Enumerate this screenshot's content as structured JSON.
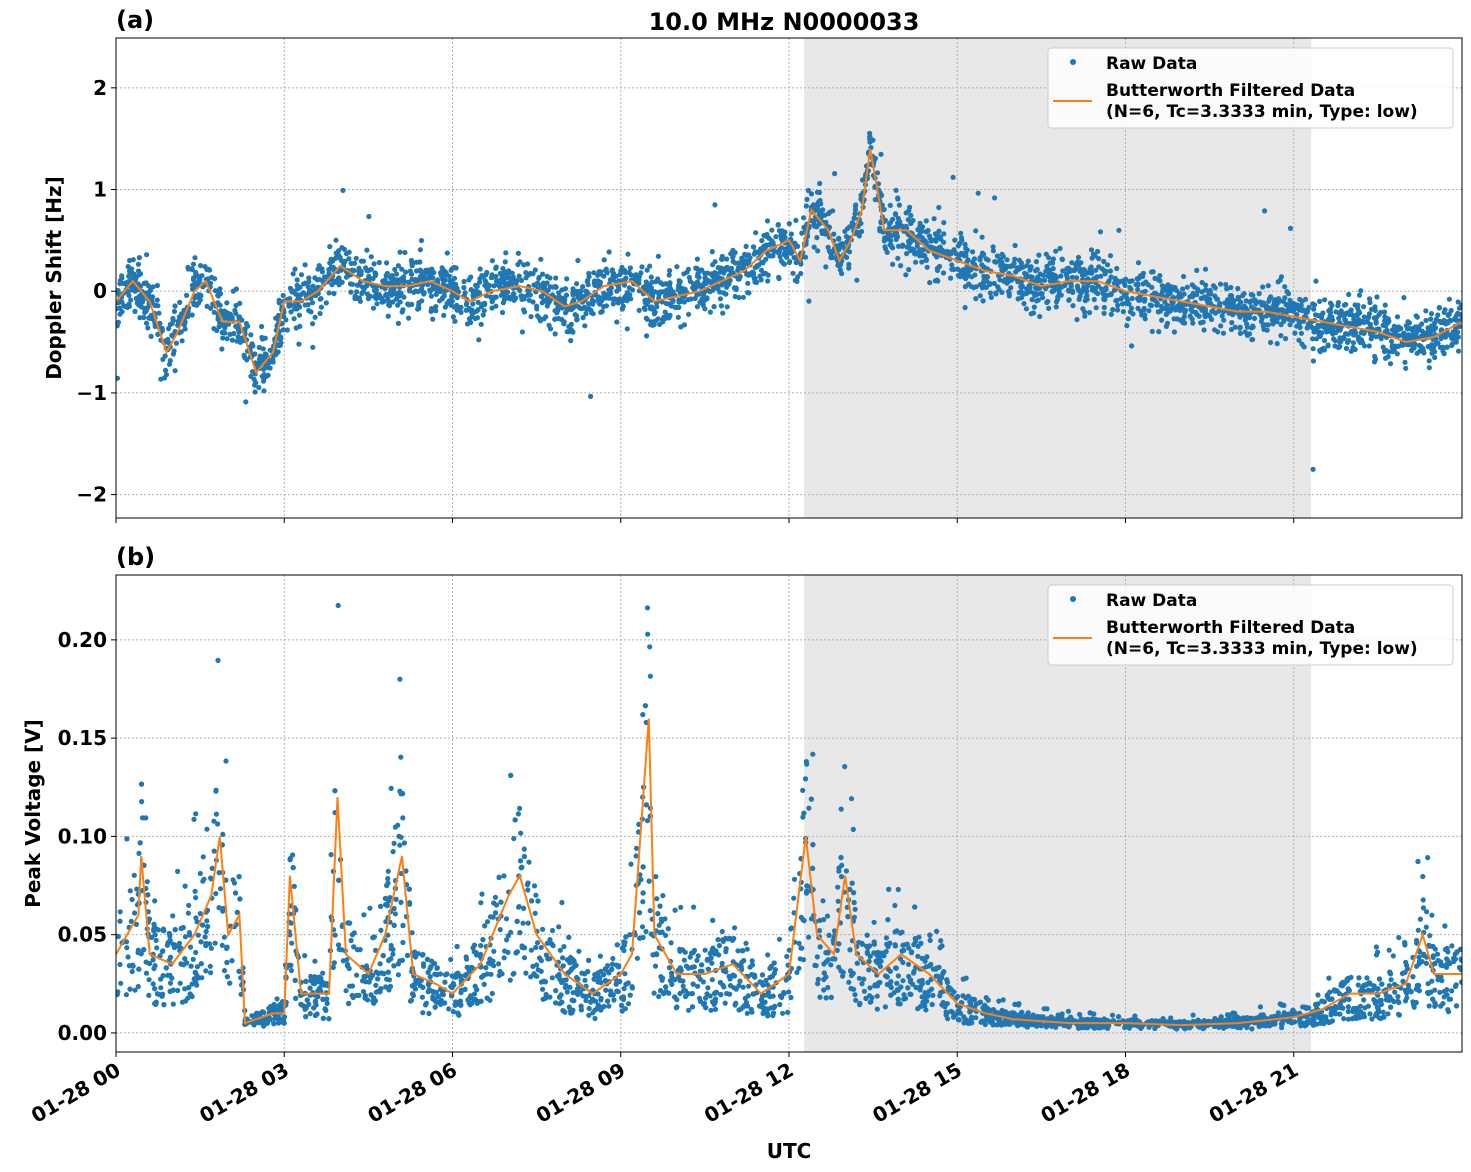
{
  "title": "10.0 MHz N0000033",
  "chart_data": [
    {
      "type": "scatter",
      "panel_label": "(a)",
      "ylabel": "Doppler Shift [Hz]",
      "xlabel": "",
      "xlim_hours": [
        0,
        24
      ],
      "ylim": [
        -2.23,
        2.49
      ],
      "yticks": [
        -2,
        -1,
        0,
        1,
        2
      ],
      "ytick_labels": [
        "−2",
        "−1",
        "0",
        "1",
        "2"
      ],
      "grid": true,
      "legend_position": "top-right",
      "shaded_interval_hours": [
        12.27,
        21.31
      ],
      "shade_color": "#e8e8e8",
      "series": [
        {
          "name": "Raw Data",
          "kind": "points",
          "color": "#1f77b4",
          "noise_sd": 0.13
        },
        {
          "name": "Butterworth Filtered Data",
          "name_line2": "(N=6, Tc=3.3333 min, Type: low)",
          "kind": "line",
          "color": "#ff7f0e",
          "points": [
            [
              0,
              -0.1
            ],
            [
              0.3,
              0.1
            ],
            [
              0.6,
              -0.1
            ],
            [
              0.9,
              -0.6
            ],
            [
              1.1,
              -0.4
            ],
            [
              1.4,
              0.0
            ],
            [
              1.6,
              0.1
            ],
            [
              1.9,
              -0.3
            ],
            [
              2.2,
              -0.3
            ],
            [
              2.5,
              -0.8
            ],
            [
              2.8,
              -0.6
            ],
            [
              3.0,
              -0.1
            ],
            [
              3.3,
              -0.1
            ],
            [
              3.6,
              0.0
            ],
            [
              4.0,
              0.25
            ],
            [
              4.4,
              0.1
            ],
            [
              4.8,
              0.05
            ],
            [
              5.2,
              0.05
            ],
            [
              5.6,
              0.1
            ],
            [
              6.0,
              0.0
            ],
            [
              6.3,
              -0.1
            ],
            [
              6.7,
              0.0
            ],
            [
              7.2,
              0.05
            ],
            [
              7.6,
              0.0
            ],
            [
              8.0,
              -0.15
            ],
            [
              8.3,
              -0.1
            ],
            [
              8.7,
              0.05
            ],
            [
              9.2,
              0.1
            ],
            [
              9.6,
              -0.1
            ],
            [
              10.0,
              -0.05
            ],
            [
              10.4,
              0.0
            ],
            [
              10.8,
              0.1
            ],
            [
              11.2,
              0.2
            ],
            [
              11.6,
              0.4
            ],
            [
              12.0,
              0.5
            ],
            [
              12.2,
              0.3
            ],
            [
              12.4,
              0.8
            ],
            [
              12.7,
              0.6
            ],
            [
              12.9,
              0.3
            ],
            [
              13.1,
              0.5
            ],
            [
              13.3,
              0.8
            ],
            [
              13.45,
              1.4
            ],
            [
              13.7,
              0.6
            ],
            [
              14.1,
              0.6
            ],
            [
              14.5,
              0.4
            ],
            [
              15.0,
              0.3
            ],
            [
              15.5,
              0.2
            ],
            [
              16.0,
              0.15
            ],
            [
              16.5,
              0.05
            ],
            [
              17.0,
              0.1
            ],
            [
              17.5,
              0.1
            ],
            [
              18.0,
              0.0
            ],
            [
              18.5,
              -0.05
            ],
            [
              19.0,
              -0.1
            ],
            [
              19.5,
              -0.15
            ],
            [
              20.0,
              -0.2
            ],
            [
              20.5,
              -0.2
            ],
            [
              21.0,
              -0.25
            ],
            [
              21.5,
              -0.3
            ],
            [
              22.0,
              -0.35
            ],
            [
              22.5,
              -0.4
            ],
            [
              23.0,
              -0.5
            ],
            [
              23.5,
              -0.45
            ],
            [
              24.0,
              -0.3
            ]
          ]
        }
      ]
    },
    {
      "type": "scatter",
      "panel_label": "(b)",
      "ylabel": "Peak Voltage [V]",
      "xlabel": "UTC",
      "xlim_hours": [
        0,
        24
      ],
      "xticks_hours": [
        0,
        3,
        6,
        9,
        12,
        15,
        18,
        21
      ],
      "xtick_labels": [
        "01-28 00",
        "01-28 03",
        "01-28 06",
        "01-28 09",
        "01-28 12",
        "01-28 15",
        "01-28 18",
        "01-28 21"
      ],
      "ylim": [
        -0.0097,
        0.233
      ],
      "yticks": [
        0,
        0.05,
        0.1,
        0.15,
        0.2
      ],
      "ytick_labels": [
        "0.00",
        "0.05",
        "0.10",
        "0.15",
        "0.20"
      ],
      "grid": true,
      "legend_position": "top-right",
      "shaded_interval_hours": [
        12.27,
        21.31
      ],
      "shade_color": "#e8e8e8",
      "series": [
        {
          "name": "Raw Data",
          "kind": "points",
          "color": "#1f77b4"
        },
        {
          "name": "Butterworth Filtered Data",
          "name_line2": "(N=6, Tc=3.3333 min, Type: low)",
          "kind": "line",
          "color": "#ff7f0e",
          "points": [
            [
              0,
              0.04
            ],
            [
              0.4,
              0.06
            ],
            [
              0.45,
              0.09
            ],
            [
              0.6,
              0.04
            ],
            [
              1.0,
              0.035
            ],
            [
              1.4,
              0.05
            ],
            [
              1.7,
              0.07
            ],
            [
              1.85,
              0.1
            ],
            [
              2.0,
              0.05
            ],
            [
              2.2,
              0.06
            ],
            [
              2.3,
              0.005
            ],
            [
              2.8,
              0.01
            ],
            [
              3.0,
              0.01
            ],
            [
              3.1,
              0.08
            ],
            [
              3.3,
              0.02
            ],
            [
              3.8,
              0.02
            ],
            [
              3.95,
              0.12
            ],
            [
              4.1,
              0.04
            ],
            [
              4.5,
              0.03
            ],
            [
              4.8,
              0.05
            ],
            [
              5.1,
              0.09
            ],
            [
              5.3,
              0.03
            ],
            [
              5.7,
              0.025
            ],
            [
              6.0,
              0.02
            ],
            [
              6.5,
              0.035
            ],
            [
              7.0,
              0.07
            ],
            [
              7.2,
              0.08
            ],
            [
              7.5,
              0.05
            ],
            [
              8.0,
              0.03
            ],
            [
              8.5,
              0.02
            ],
            [
              9.0,
              0.03
            ],
            [
              9.2,
              0.04
            ],
            [
              9.5,
              0.16
            ],
            [
              9.6,
              0.05
            ],
            [
              10.0,
              0.03
            ],
            [
              10.5,
              0.03
            ],
            [
              11.0,
              0.035
            ],
            [
              11.5,
              0.02
            ],
            [
              12.0,
              0.03
            ],
            [
              12.3,
              0.1
            ],
            [
              12.5,
              0.05
            ],
            [
              12.8,
              0.04
            ],
            [
              13.0,
              0.08
            ],
            [
              13.2,
              0.04
            ],
            [
              13.6,
              0.03
            ],
            [
              14.0,
              0.04
            ],
            [
              14.5,
              0.03
            ],
            [
              15.0,
              0.015
            ],
            [
              15.5,
              0.01
            ],
            [
              16.0,
              0.007
            ],
            [
              17,
              0.005
            ],
            [
              18,
              0.005
            ],
            [
              19,
              0.004
            ],
            [
              20,
              0.005
            ],
            [
              21,
              0.008
            ],
            [
              21.5,
              0.012
            ],
            [
              22,
              0.02
            ],
            [
              22.5,
              0.02
            ],
            [
              23.0,
              0.025
            ],
            [
              23.3,
              0.05
            ],
            [
              23.5,
              0.03
            ],
            [
              24,
              0.03
            ]
          ]
        }
      ]
    }
  ]
}
